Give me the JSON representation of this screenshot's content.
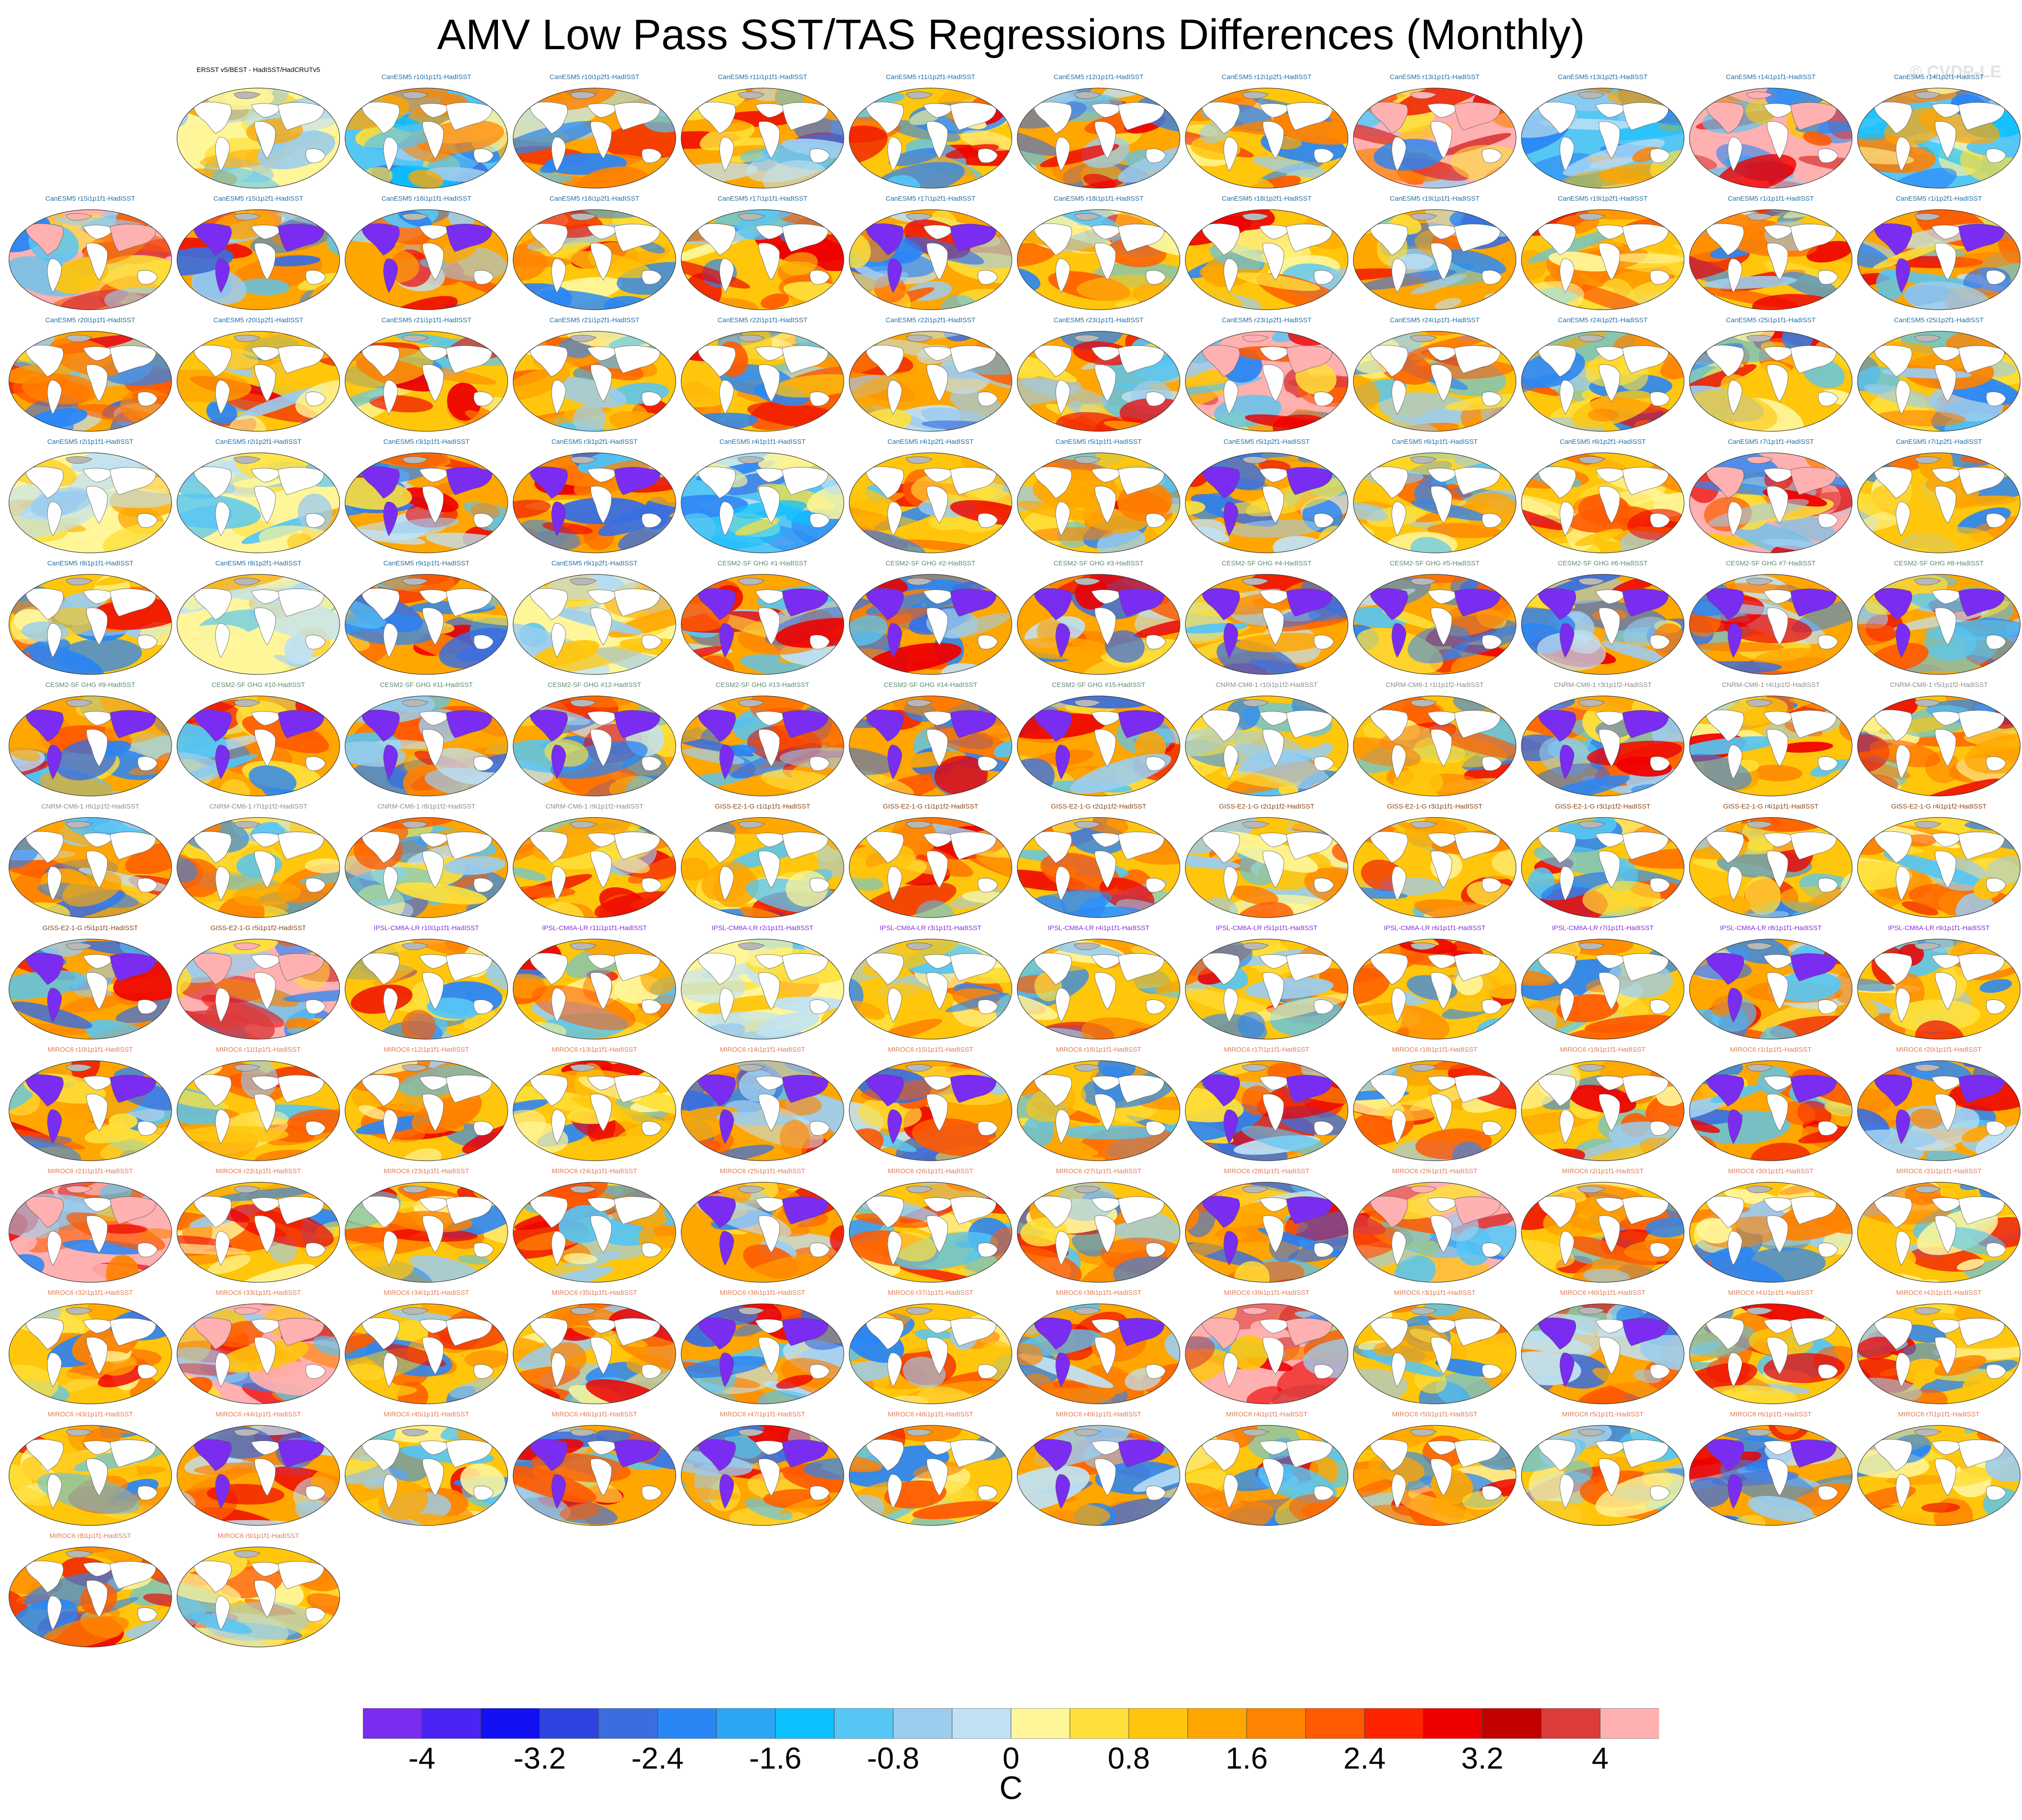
{
  "title": "AMV Low Pass SST/TAS Regressions Differences (Monthly)",
  "watermark": "© CVDP-LE",
  "colors": {
    "canesm5": "#1f6fa8",
    "cesm2": "#5b8a6c",
    "cnrm": "#8c8c8c",
    "giss": "#8b4513",
    "ipsl": "#8a2be2",
    "miroc6": "#e07b54",
    "obs": "#000000"
  },
  "colorbar": {
    "colors": [
      "#7a2cf0",
      "#4b24f5",
      "#1010f0",
      "#2e44e0",
      "#3a6ee0",
      "#2a86f5",
      "#2aa6f5",
      "#0cc0ff",
      "#56c6f4",
      "#9ccdee",
      "#c0e2f4",
      "#fff69a",
      "#ffe03a",
      "#ffc60c",
      "#ffa600",
      "#ff8200",
      "#ff5a00",
      "#ff2400",
      "#ee0000",
      "#c20000",
      "#dc3c3c",
      "#ffb0b0"
    ],
    "tick_labels": [
      "-4",
      "-3.2",
      "-2.4",
      "-1.6",
      "-0.8",
      "0",
      "0.8",
      "1.6",
      "2.4",
      "3.2",
      "4"
    ],
    "unit": "C"
  },
  "panels": [
    {
      "label": "ERSST v5/BEST - HadISST/HadCRUTv5",
      "group": "obs",
      "tone": "neutral"
    },
    {
      "label": "CanESM5 r10i1p1f1-HadISST",
      "group": "canesm5",
      "tone": "cool"
    },
    {
      "label": "CanESM5 r10i1p2f1-HadISST",
      "group": "canesm5",
      "tone": "mixed"
    },
    {
      "label": "CanESM5 r11i1p1f1-HadISST",
      "group": "canesm5",
      "tone": "mixed"
    },
    {
      "label": "CanESM5 r11i1p2f1-HadISST",
      "group": "canesm5",
      "tone": "warm"
    },
    {
      "label": "CanESM5 r12i1p1f1-HadISST",
      "group": "canesm5",
      "tone": "mixed"
    },
    {
      "label": "CanESM5 r12i1p2f1-HadISST",
      "group": "canesm5",
      "tone": "warm"
    },
    {
      "label": "CanESM5 r13i1p1f1-HadISST",
      "group": "canesm5",
      "tone": "pink"
    },
    {
      "label": "CanESM5 r13i1p2f1-HadISST",
      "group": "canesm5",
      "tone": "cool"
    },
    {
      "label": "CanESM5 r14i1p1f1-HadISST",
      "group": "canesm5",
      "tone": "pink"
    },
    {
      "label": "CanESM5 r14i1p2f1-HadISST",
      "group": "canesm5",
      "tone": "cool"
    },
    {
      "label": "CanESM5 r15i1p1f1-HadISST",
      "group": "canesm5",
      "tone": "pink"
    },
    {
      "label": "CanESM5 r15i1p2f1-HadISST",
      "group": "canesm5",
      "tone": "purple"
    },
    {
      "label": "CanESM5 r16i1p1f1-HadISST",
      "group": "canesm5",
      "tone": "purple"
    },
    {
      "label": "CanESM5 r16i1p2f1-HadISST",
      "group": "canesm5",
      "tone": "warm"
    },
    {
      "label": "CanESM5 r17i1p1f1-HadISST",
      "group": "canesm5",
      "tone": "warm"
    },
    {
      "label": "CanESM5 r17i1p2f1-HadISST",
      "group": "canesm5",
      "tone": "purple"
    },
    {
      "label": "CanESM5 r18i1p1f1-HadISST",
      "group": "canesm5",
      "tone": "warm"
    },
    {
      "label": "CanESM5 r18i1p2f1-HadISST",
      "group": "canesm5",
      "tone": "warm"
    },
    {
      "label": "CanESM5 r19i1p1f1-HadISST",
      "group": "canesm5",
      "tone": "mixed"
    },
    {
      "label": "CanESM5 r19i1p2f1-HadISST",
      "group": "canesm5",
      "tone": "warm"
    },
    {
      "label": "CanESM5 r1i1p1f1-HadISST",
      "group": "canesm5",
      "tone": "warm"
    },
    {
      "label": "CanESM5 r1i1p2f1-HadISST",
      "group": "canesm5",
      "tone": "purple"
    },
    {
      "label": "CanESM5 r20i1p1f1-HadISST",
      "group": "canesm5",
      "tone": "mixed"
    },
    {
      "label": "CanESM5 r20i1p2f1-HadISST",
      "group": "canesm5",
      "tone": "warm"
    },
    {
      "label": "CanESM5 r21i1p1f1-HadISST",
      "group": "canesm5",
      "tone": "warm"
    },
    {
      "label": "CanESM5 r21i1p2f1-HadISST",
      "group": "canesm5",
      "tone": "warm"
    },
    {
      "label": "CanESM5 r22i1p1f1-HadISST",
      "group": "canesm5",
      "tone": "warm"
    },
    {
      "label": "CanESM5 r22i1p2f1-HadISST",
      "group": "canesm5",
      "tone": "mixed"
    },
    {
      "label": "CanESM5 r23i1p1f1-HadISST",
      "group": "canesm5",
      "tone": "mixed"
    },
    {
      "label": "CanESM5 r23i1p2f1-HadISST",
      "group": "canesm5",
      "tone": "pink"
    },
    {
      "label": "CanESM5 r24i1p1f1-HadISST",
      "group": "canesm5",
      "tone": "warm"
    },
    {
      "label": "CanESM5 r24i1p2f1-HadISST",
      "group": "canesm5",
      "tone": "warm"
    },
    {
      "label": "CanESM5 r25i1p1f1-HadISST",
      "group": "canesm5",
      "tone": "warm"
    },
    {
      "label": "CanESM5 r25i1p2f1-HadISST",
      "group": "canesm5",
      "tone": "warm"
    },
    {
      "label": "CanESM5 r2i1p1f1-HadISST",
      "group": "canesm5",
      "tone": "neutral"
    },
    {
      "label": "CanESM5 r2i1p2f1-HadISST",
      "group": "canesm5",
      "tone": "neutral"
    },
    {
      "label": "CanESM5 r3i1p1f1-HadISST",
      "group": "canesm5",
      "tone": "purple"
    },
    {
      "label": "CanESM5 r3i1p2f1-HadISST",
      "group": "canesm5",
      "tone": "purple"
    },
    {
      "label": "CanESM5 r4i1p1f1-HadISST",
      "group": "canesm5",
      "tone": "cool"
    },
    {
      "label": "CanESM5 r4i1p2f1-HadISST",
      "group": "canesm5",
      "tone": "warm"
    },
    {
      "label": "CanESM5 r5i1p1f1-HadISST",
      "group": "canesm5",
      "tone": "warm"
    },
    {
      "label": "CanESM5 r5i1p2f1-HadISST",
      "group": "canesm5",
      "tone": "purple"
    },
    {
      "label": "CanESM5 r6i1p1f1-HadISST",
      "group": "canesm5",
      "tone": "warm"
    },
    {
      "label": "CanESM5 r6i1p2f1-HadISST",
      "group": "canesm5",
      "tone": "warm"
    },
    {
      "label": "CanESM5 r7i1p1f1-HadISST",
      "group": "canesm5",
      "tone": "pink"
    },
    {
      "label": "CanESM5 r7i1p2f1-HadISST",
      "group": "canesm5",
      "tone": "warm"
    },
    {
      "label": "CanESM5 r8i1p1f1-HadISST",
      "group": "canesm5",
      "tone": "warm"
    },
    {
      "label": "CanESM5 r8i1p2f1-HadISST",
      "group": "canesm5",
      "tone": "neutral"
    },
    {
      "label": "CanESM5 r9i1p1f1-HadISST",
      "group": "canesm5",
      "tone": "mixed"
    },
    {
      "label": "CanESM5 r9i1p2f1-HadISST",
      "group": "canesm5",
      "tone": "neutral"
    },
    {
      "label": "CESM2-SF GHG #1-HadISST",
      "group": "cesm2",
      "tone": "purple"
    },
    {
      "label": "CESM2-SF GHG #2-HadISST",
      "group": "cesm2",
      "tone": "purple"
    },
    {
      "label": "CESM2-SF GHG #3-HadISST",
      "group": "cesm2",
      "tone": "purple"
    },
    {
      "label": "CESM2-SF GHG #4-HadISST",
      "group": "cesm2",
      "tone": "purple"
    },
    {
      "label": "CESM2-SF GHG #5-HadISST",
      "group": "cesm2",
      "tone": "purple"
    },
    {
      "label": "CESM2-SF GHG #6-HadISST",
      "group": "cesm2",
      "tone": "purple"
    },
    {
      "label": "CESM2-SF GHG #7-HadISST",
      "group": "cesm2",
      "tone": "purple"
    },
    {
      "label": "CESM2-SF GHG #8-HadISST",
      "group": "cesm2",
      "tone": "purple"
    },
    {
      "label": "CESM2-SF GHG #9-HadISST",
      "group": "cesm2",
      "tone": "purple"
    },
    {
      "label": "CESM2-SF GHG #10-HadISST",
      "group": "cesm2",
      "tone": "purple"
    },
    {
      "label": "CESM2-SF GHG #11-HadISST",
      "group": "cesm2",
      "tone": "purple"
    },
    {
      "label": "CESM2-SF GHG #12-HadISST",
      "group": "cesm2",
      "tone": "purple"
    },
    {
      "label": "CESM2-SF GHG #13-HadISST",
      "group": "cesm2",
      "tone": "purple"
    },
    {
      "label": "CESM2-SF GHG #14-HadISST",
      "group": "cesm2",
      "tone": "purple"
    },
    {
      "label": "CESM2-SF GHG #15-HadISST",
      "group": "cesm2",
      "tone": "purple"
    },
    {
      "label": "CNRM-CM6-1 r10i1p1f2-HadISST",
      "group": "cnrm",
      "tone": "warm"
    },
    {
      "label": "CNRM-CM6-1 r1i1p1f2-HadISST",
      "group": "cnrm",
      "tone": "warm"
    },
    {
      "label": "CNRM-CM6-1 r3i1p1f2-HadISST",
      "group": "cnrm",
      "tone": "purple"
    },
    {
      "label": "CNRM-CM6-1 r4i1p1f2-HadISST",
      "group": "cnrm",
      "tone": "warm"
    },
    {
      "label": "CNRM-CM6-1 r5i1p1f2-HadISST",
      "group": "cnrm",
      "tone": "warm"
    },
    {
      "label": "CNRM-CM6-1 r6i1p1f2-HadISST",
      "group": "cnrm",
      "tone": "mixed"
    },
    {
      "label": "CNRM-CM6-1 r7i1p1f2-HadISST",
      "group": "cnrm",
      "tone": "warm"
    },
    {
      "label": "CNRM-CM6-1 r8i1p1f2-HadISST",
      "group": "cnrm",
      "tone": "mixed"
    },
    {
      "label": "CNRM-CM6-1 r9i1p1f2-HadISST",
      "group": "cnrm",
      "tone": "warm"
    },
    {
      "label": "GISS-E2-1-G r1i1p1f1-HadISST",
      "group": "giss",
      "tone": "warm"
    },
    {
      "label": "GISS-E2-1-G r1i1p1f2-HadISST",
      "group": "giss",
      "tone": "warm"
    },
    {
      "label": "GISS-E2-1-G r2i1p1f2-HadISST",
      "group": "giss",
      "tone": "warm"
    },
    {
      "label": "GISS-E2-1-G r2i1p1f2-HadISST",
      "group": "giss",
      "tone": "warm"
    },
    {
      "label": "GISS-E2-1-G r3i1p1f1-HadISST",
      "group": "giss",
      "tone": "warm"
    },
    {
      "label": "GISS-E2-1-G r3i1p1f2-HadISST",
      "group": "giss",
      "tone": "warm"
    },
    {
      "label": "GISS-E2-1-G r4i1p1f1-HadISST",
      "group": "giss",
      "tone": "warm"
    },
    {
      "label": "GISS-E2-1-G r4i1p1f2-HadISST",
      "group": "giss",
      "tone": "warm"
    },
    {
      "label": "GISS-E2-1-G r5i1p1f1-HadISST",
      "group": "giss",
      "tone": "purple"
    },
    {
      "label": "GISS-E2-1-G r5i1p1f2-HadISST",
      "group": "giss",
      "tone": "pink"
    },
    {
      "label": "IPSL-CM6A-LR r10i1p1f1-HadISST",
      "group": "ipsl",
      "tone": "warm"
    },
    {
      "label": "IPSL-CM6A-LR r11i1p1f1-HadISST",
      "group": "ipsl",
      "tone": "warm"
    },
    {
      "label": "IPSL-CM6A-LR r2i1p1f1-HadISST",
      "group": "ipsl",
      "tone": "neutral"
    },
    {
      "label": "IPSL-CM6A-LR r3i1p1f1-HadISST",
      "group": "ipsl",
      "tone": "warm"
    },
    {
      "label": "IPSL-CM6A-LR r4i1p1f1-HadISST",
      "group": "ipsl",
      "tone": "warm"
    },
    {
      "label": "IPSL-CM6A-LR r5i1p1f1-HadISST",
      "group": "ipsl",
      "tone": "warm"
    },
    {
      "label": "IPSL-CM6A-LR r6i1p1f1-HadISST",
      "group": "ipsl",
      "tone": "warm"
    },
    {
      "label": "IPSL-CM6A-LR r7i1p1f1-HadISST",
      "group": "ipsl",
      "tone": "warm"
    },
    {
      "label": "IPSL-CM6A-LR r8i1p1f1-HadISST",
      "group": "ipsl",
      "tone": "purple"
    },
    {
      "label": "IPSL-CM6A-LR r9i1p1f1-HadISST",
      "group": "ipsl",
      "tone": "warm"
    },
    {
      "label": "MIROC6 r10i1p1f1-HadISST",
      "group": "miroc6",
      "tone": "purple"
    },
    {
      "label": "MIROC6 r11i1p1f1-HadISST",
      "group": "miroc6",
      "tone": "warm"
    },
    {
      "label": "MIROC6 r12i1p1f1-HadISST",
      "group": "miroc6",
      "tone": "warm"
    },
    {
      "label": "MIROC6 r13i1p1f1-HadISST",
      "group": "miroc6",
      "tone": "warm"
    },
    {
      "label": "MIROC6 r14i1p1f1-HadISST",
      "group": "miroc6",
      "tone": "purple"
    },
    {
      "label": "MIROC6 r15i1p1f1-HadISST",
      "group": "miroc6",
      "tone": "purple"
    },
    {
      "label": "MIROC6 r16i1p1f1-HadISST",
      "group": "miroc6",
      "tone": "warm"
    },
    {
      "label": "MIROC6 r17i1p1f1-HadISST",
      "group": "miroc6",
      "tone": "purple"
    },
    {
      "label": "MIROC6 r18i1p1f1-HadISST",
      "group": "miroc6",
      "tone": "warm"
    },
    {
      "label": "MIROC6 r19i1p1f1-HadISST",
      "group": "miroc6",
      "tone": "warm"
    },
    {
      "label": "MIROC6 r1i1p1f1-HadISST",
      "group": "miroc6",
      "tone": "purple"
    },
    {
      "label": "MIROC6 r20i1p1f1-HadISST",
      "group": "miroc6",
      "tone": "purple"
    },
    {
      "label": "MIROC6 r21i1p1f1-HadISST",
      "group": "miroc6",
      "tone": "pink"
    },
    {
      "label": "MIROC6 r22i1p1f1-HadISST",
      "group": "miroc6",
      "tone": "warm"
    },
    {
      "label": "MIROC6 r23i1p1f1-HadISST",
      "group": "miroc6",
      "tone": "warm"
    },
    {
      "label": "MIROC6 r24i1p1f1-HadISST",
      "group": "miroc6",
      "tone": "warm"
    },
    {
      "label": "MIROC6 r25i1p1f1-HadISST",
      "group": "miroc6",
      "tone": "purple"
    },
    {
      "label": "MIROC6 r26i1p1f1-HadISST",
      "group": "miroc6",
      "tone": "warm"
    },
    {
      "label": "MIROC6 r27i1p1f1-HadISST",
      "group": "miroc6",
      "tone": "warm"
    },
    {
      "label": "MIROC6 r28i1p1f1-HadISST",
      "group": "miroc6",
      "tone": "purple"
    },
    {
      "label": "MIROC6 r29i1p1f1-HadISST",
      "group": "miroc6",
      "tone": "pink"
    },
    {
      "label": "MIROC6 r2i1p1f1-HadISST",
      "group": "miroc6",
      "tone": "warm"
    },
    {
      "label": "MIROC6 r30i1p1f1-HadISST",
      "group": "miroc6",
      "tone": "warm"
    },
    {
      "label": "MIROC6 r31i1p1f1-HadISST",
      "group": "miroc6",
      "tone": "warm"
    },
    {
      "label": "MIROC6 r32i1p1f1-HadISST",
      "group": "miroc6",
      "tone": "warm"
    },
    {
      "label": "MIROC6 r33i1p1f1-HadISST",
      "group": "miroc6",
      "tone": "pink"
    },
    {
      "label": "MIROC6 r34i1p1f1-HadISST",
      "group": "miroc6",
      "tone": "warm"
    },
    {
      "label": "MIROC6 r35i1p1f1-HadISST",
      "group": "miroc6",
      "tone": "warm"
    },
    {
      "label": "MIROC6 r36i1p1f1-HadISST",
      "group": "miroc6",
      "tone": "purple"
    },
    {
      "label": "MIROC6 r37i1p1f1-HadISST",
      "group": "miroc6",
      "tone": "warm"
    },
    {
      "label": "MIROC6 r38i1p1f1-HadISST",
      "group": "miroc6",
      "tone": "purple"
    },
    {
      "label": "MIROC6 r39i1p1f1-HadISST",
      "group": "miroc6",
      "tone": "pink"
    },
    {
      "label": "MIROC6 r3i1p1f1-HadISST",
      "group": "miroc6",
      "tone": "warm"
    },
    {
      "label": "MIROC6 r40i1p1f1-HadISST",
      "group": "miroc6",
      "tone": "purple"
    },
    {
      "label": "MIROC6 r41i1p1f1-HadISST",
      "group": "miroc6",
      "tone": "warm"
    },
    {
      "label": "MIROC6 r42i1p1f1-HadISST",
      "group": "miroc6",
      "tone": "warm"
    },
    {
      "label": "MIROC6 r43i1p1f1-HadISST",
      "group": "miroc6",
      "tone": "warm"
    },
    {
      "label": "MIROC6 r44i1p1f1-HadISST",
      "group": "miroc6",
      "tone": "purple"
    },
    {
      "label": "MIROC6 r45i1p1f1-HadISST",
      "group": "miroc6",
      "tone": "warm"
    },
    {
      "label": "MIROC6 r46i1p1f1-HadISST",
      "group": "miroc6",
      "tone": "purple"
    },
    {
      "label": "MIROC6 r47i1p1f1-HadISST",
      "group": "miroc6",
      "tone": "purple"
    },
    {
      "label": "MIROC6 r48i1p1f1-HadISST",
      "group": "miroc6",
      "tone": "warm"
    },
    {
      "label": "MIROC6 r49i1p1f1-HadISST",
      "group": "miroc6",
      "tone": "purple"
    },
    {
      "label": "MIROC6 r4i1p1f1-HadISST",
      "group": "miroc6",
      "tone": "warm"
    },
    {
      "label": "MIROC6 r50i1p1f1-HadISST",
      "group": "miroc6",
      "tone": "warm"
    },
    {
      "label": "MIROC6 r5i1p1f1-HadISST",
      "group": "miroc6",
      "tone": "warm"
    },
    {
      "label": "MIROC6 r6i1p1f1-HadISST",
      "group": "miroc6",
      "tone": "purple"
    },
    {
      "label": "MIROC6 r7i1p1f1-HadISST",
      "group": "miroc6",
      "tone": "warm"
    },
    {
      "label": "MIROC6 r8i1p1f1-HadISST",
      "group": "miroc6",
      "tone": "warm"
    },
    {
      "label": "MIROC6 r9i1p1f1-HadISST",
      "group": "miroc6",
      "tone": "warm"
    }
  ]
}
